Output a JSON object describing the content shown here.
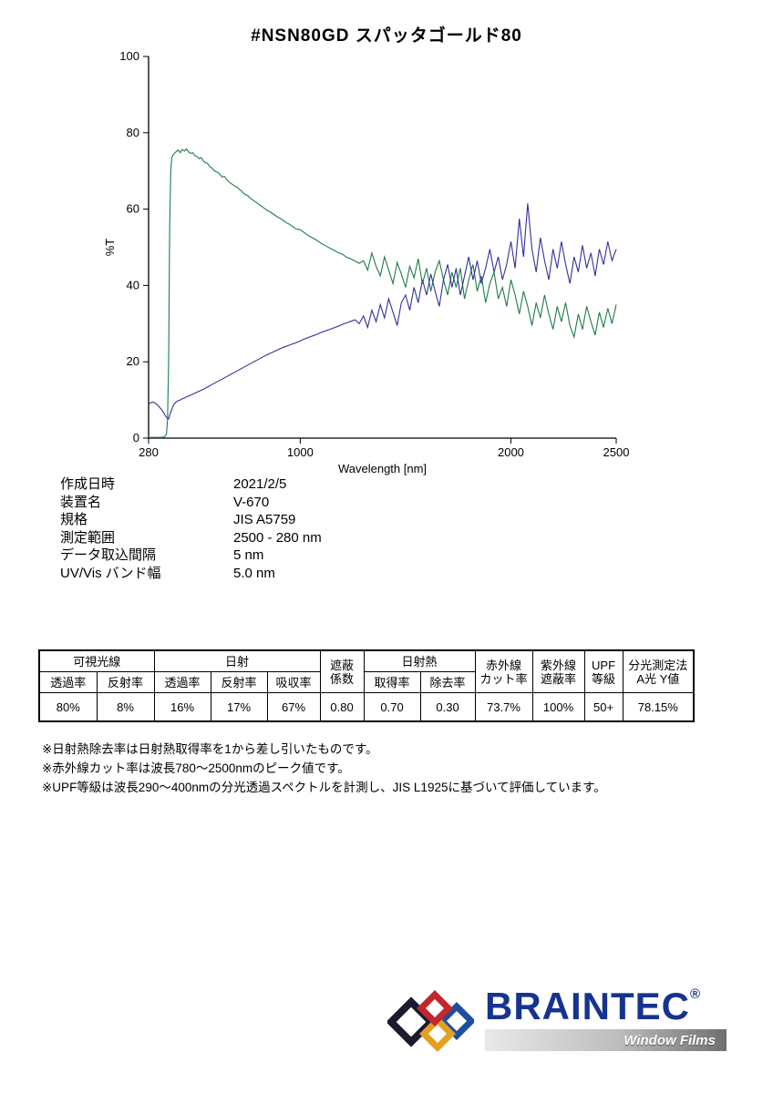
{
  "title": "#NSN80GD  スパッタゴールド80",
  "chart_data": {
    "type": "line",
    "title": "",
    "xlabel": "Wavelength [nm]",
    "ylabel": "%T",
    "xlim": [
      280,
      2500
    ],
    "ylim": [
      0,
      100
    ],
    "x_ticks": [
      280,
      1000,
      2000,
      2500
    ],
    "y_ticks": [
      0,
      20,
      40,
      60,
      80,
      100
    ],
    "grid": false,
    "legend": "none",
    "series": [
      {
        "name": "transmittance",
        "color": "#1e7d46",
        "points": [
          [
            280,
            0.2
          ],
          [
            300,
            0.2
          ],
          [
            320,
            0.2
          ],
          [
            340,
            0.2
          ],
          [
            355,
            0.3
          ],
          [
            365,
            1
          ],
          [
            370,
            5
          ],
          [
            375,
            20
          ],
          [
            380,
            55
          ],
          [
            385,
            70
          ],
          [
            390,
            73.5
          ],
          [
            395,
            74
          ],
          [
            400,
            74.5
          ],
          [
            410,
            75
          ],
          [
            420,
            75.5
          ],
          [
            430,
            74.8
          ],
          [
            440,
            75.6
          ],
          [
            450,
            75.2
          ],
          [
            460,
            75.8
          ],
          [
            470,
            75.0
          ],
          [
            480,
            74.6
          ],
          [
            490,
            74.8
          ],
          [
            500,
            74.0
          ],
          [
            510,
            73.8
          ],
          [
            520,
            73.2
          ],
          [
            530,
            73.5
          ],
          [
            540,
            72.6
          ],
          [
            550,
            72.2
          ],
          [
            560,
            72.0
          ],
          [
            570,
            71.2
          ],
          [
            580,
            70.8
          ],
          [
            590,
            70.2
          ],
          [
            600,
            69.8
          ],
          [
            610,
            69.6
          ],
          [
            620,
            69.0
          ],
          [
            630,
            68.4
          ],
          [
            640,
            68.6
          ],
          [
            650,
            67.8
          ],
          [
            660,
            67.2
          ],
          [
            670,
            66.8
          ],
          [
            680,
            66.4
          ],
          [
            690,
            66.0
          ],
          [
            700,
            65.8
          ],
          [
            710,
            65.2
          ],
          [
            720,
            64.8
          ],
          [
            730,
            64.2
          ],
          [
            740,
            63.8
          ],
          [
            750,
            63.6
          ],
          [
            760,
            63.0
          ],
          [
            770,
            62.6
          ],
          [
            780,
            62.2
          ],
          [
            790,
            61.8
          ],
          [
            800,
            61.4
          ],
          [
            815,
            60.8
          ],
          [
            830,
            60.2
          ],
          [
            845,
            59.6
          ],
          [
            860,
            59.2
          ],
          [
            875,
            58.6
          ],
          [
            890,
            58.0
          ],
          [
            905,
            57.6
          ],
          [
            920,
            57.0
          ],
          [
            935,
            56.4
          ],
          [
            950,
            56.0
          ],
          [
            965,
            55.4
          ],
          [
            980,
            54.8
          ],
          [
            1000,
            54.6
          ],
          [
            1020,
            53.8
          ],
          [
            1040,
            53.0
          ],
          [
            1060,
            52.4
          ],
          [
            1080,
            51.8
          ],
          [
            1100,
            51.0
          ],
          [
            1120,
            50.4
          ],
          [
            1140,
            49.8
          ],
          [
            1160,
            49.2
          ],
          [
            1180,
            48.6
          ],
          [
            1200,
            48.2
          ],
          [
            1220,
            47.4
          ],
          [
            1240,
            47.0
          ],
          [
            1260,
            46.4
          ],
          [
            1280,
            45.8
          ],
          [
            1300,
            46.5
          ],
          [
            1320,
            44.0
          ],
          [
            1340,
            48.5
          ],
          [
            1360,
            45.0
          ],
          [
            1380,
            42.5
          ],
          [
            1400,
            47.5
          ],
          [
            1420,
            44.0
          ],
          [
            1440,
            40.5
          ],
          [
            1460,
            46.0
          ],
          [
            1480,
            43.0
          ],
          [
            1500,
            39.5
          ],
          [
            1520,
            45.0
          ],
          [
            1540,
            42.0
          ],
          [
            1560,
            47.0
          ],
          [
            1580,
            40.5
          ],
          [
            1600,
            44.5
          ],
          [
            1620,
            38.5
          ],
          [
            1640,
            43.5
          ],
          [
            1660,
            46.5
          ],
          [
            1680,
            41.5
          ],
          [
            1700,
            37.5
          ],
          [
            1720,
            43.5
          ],
          [
            1740,
            39.5
          ],
          [
            1760,
            44.5
          ],
          [
            1780,
            36.5
          ],
          [
            1800,
            41.5
          ],
          [
            1820,
            45.5
          ],
          [
            1840,
            38.5
          ],
          [
            1860,
            42.5
          ],
          [
            1880,
            35.5
          ],
          [
            1900,
            40.5
          ],
          [
            1920,
            43.5
          ],
          [
            1940,
            36.5
          ],
          [
            1960,
            39.5
          ],
          [
            1980,
            34.5
          ],
          [
            2000,
            41.5
          ],
          [
            2020,
            37.5
          ],
          [
            2040,
            32.5
          ],
          [
            2060,
            38.5
          ],
          [
            2080,
            34.5
          ],
          [
            2100,
            29.5
          ],
          [
            2120,
            35.5
          ],
          [
            2140,
            31.5
          ],
          [
            2160,
            37.5
          ],
          [
            2180,
            32.5
          ],
          [
            2200,
            28.5
          ],
          [
            2220,
            34.5
          ],
          [
            2240,
            30.5
          ],
          [
            2260,
            35.5
          ],
          [
            2280,
            29.5
          ],
          [
            2300,
            26.5
          ],
          [
            2320,
            32.5
          ],
          [
            2340,
            28.5
          ],
          [
            2360,
            34.5
          ],
          [
            2380,
            30.5
          ],
          [
            2400,
            27.0
          ],
          [
            2420,
            33.0
          ],
          [
            2440,
            29.0
          ],
          [
            2460,
            34.0
          ],
          [
            2480,
            30.0
          ],
          [
            2500,
            35.0
          ]
        ]
      },
      {
        "name": "reflectance",
        "color": "#31319a",
        "points": [
          [
            280,
            9.0
          ],
          [
            300,
            9.5
          ],
          [
            310,
            9.2
          ],
          [
            320,
            8.8
          ],
          [
            330,
            8.2
          ],
          [
            340,
            7.6
          ],
          [
            350,
            6.8
          ],
          [
            360,
            5.8
          ],
          [
            370,
            5.2
          ],
          [
            375,
            5.0
          ],
          [
            380,
            6.0
          ],
          [
            390,
            7.5
          ],
          [
            400,
            8.8
          ],
          [
            410,
            9.4
          ],
          [
            420,
            9.8
          ],
          [
            430,
            10.0
          ],
          [
            440,
            10.3
          ],
          [
            450,
            10.5
          ],
          [
            460,
            10.8
          ],
          [
            470,
            11.0
          ],
          [
            480,
            11.3
          ],
          [
            490,
            11.5
          ],
          [
            500,
            11.8
          ],
          [
            520,
            12.3
          ],
          [
            540,
            12.8
          ],
          [
            560,
            13.4
          ],
          [
            580,
            14.0
          ],
          [
            600,
            14.6
          ],
          [
            620,
            15.2
          ],
          [
            640,
            15.8
          ],
          [
            660,
            16.4
          ],
          [
            680,
            17.0
          ],
          [
            700,
            17.6
          ],
          [
            720,
            18.2
          ],
          [
            740,
            18.8
          ],
          [
            760,
            19.4
          ],
          [
            780,
            20.0
          ],
          [
            800,
            20.6
          ],
          [
            820,
            21.2
          ],
          [
            840,
            21.8
          ],
          [
            860,
            22.3
          ],
          [
            880,
            22.8
          ],
          [
            900,
            23.3
          ],
          [
            920,
            23.8
          ],
          [
            940,
            24.2
          ],
          [
            960,
            24.6
          ],
          [
            980,
            25.0
          ],
          [
            1000,
            25.5
          ],
          [
            1020,
            26.0
          ],
          [
            1040,
            26.4
          ],
          [
            1060,
            26.8
          ],
          [
            1080,
            27.2
          ],
          [
            1100,
            27.7
          ],
          [
            1120,
            28.1
          ],
          [
            1140,
            28.5
          ],
          [
            1160,
            28.9
          ],
          [
            1180,
            29.3
          ],
          [
            1200,
            29.8
          ],
          [
            1220,
            30.2
          ],
          [
            1240,
            30.6
          ],
          [
            1260,
            31.0
          ],
          [
            1280,
            30.0
          ],
          [
            1300,
            32.0
          ],
          [
            1320,
            29.0
          ],
          [
            1340,
            33.5
          ],
          [
            1360,
            30.5
          ],
          [
            1380,
            35.0
          ],
          [
            1400,
            31.5
          ],
          [
            1420,
            36.5
          ],
          [
            1440,
            33.0
          ],
          [
            1460,
            29.5
          ],
          [
            1480,
            35.5
          ],
          [
            1500,
            37.5
          ],
          [
            1520,
            33.5
          ],
          [
            1540,
            39.5
          ],
          [
            1560,
            35.5
          ],
          [
            1580,
            41.5
          ],
          [
            1600,
            37.5
          ],
          [
            1620,
            43.0
          ],
          [
            1640,
            38.5
          ],
          [
            1660,
            34.5
          ],
          [
            1680,
            41.5
          ],
          [
            1700,
            45.5
          ],
          [
            1720,
            39.5
          ],
          [
            1740,
            44.5
          ],
          [
            1760,
            37.5
          ],
          [
            1780,
            42.5
          ],
          [
            1800,
            47.5
          ],
          [
            1820,
            41.5
          ],
          [
            1840,
            46.5
          ],
          [
            1860,
            40.5
          ],
          [
            1880,
            44.5
          ],
          [
            1900,
            49.5
          ],
          [
            1920,
            43.5
          ],
          [
            1940,
            47.5
          ],
          [
            1960,
            41.5
          ],
          [
            1980,
            45.5
          ],
          [
            2000,
            51.5
          ],
          [
            2020,
            44.5
          ],
          [
            2040,
            57.5
          ],
          [
            2060,
            47.5
          ],
          [
            2080,
            61.5
          ],
          [
            2100,
            49.5
          ],
          [
            2120,
            43.5
          ],
          [
            2140,
            52.5
          ],
          [
            2160,
            46.5
          ],
          [
            2180,
            41.5
          ],
          [
            2200,
            49.5
          ],
          [
            2220,
            44.5
          ],
          [
            2240,
            51.5
          ],
          [
            2260,
            45.5
          ],
          [
            2280,
            40.5
          ],
          [
            2300,
            47.5
          ],
          [
            2320,
            43.5
          ],
          [
            2340,
            50.5
          ],
          [
            2360,
            44.5
          ],
          [
            2380,
            48.5
          ],
          [
            2400,
            42.5
          ],
          [
            2420,
            49.5
          ],
          [
            2440,
            45.5
          ],
          [
            2460,
            51.5
          ],
          [
            2480,
            46.5
          ],
          [
            2500,
            49.5
          ]
        ]
      }
    ]
  },
  "metadata": {
    "rows": [
      {
        "label": "作成日時",
        "value": "2021/2/5"
      },
      {
        "label": "装置名",
        "value": "V-670"
      },
      {
        "label": "規格",
        "value": "JIS A5759"
      },
      {
        "label": "測定範囲",
        "value": "2500 - 280 nm"
      },
      {
        "label": "データ取込間隔",
        "value": "5 nm"
      },
      {
        "label": "UV/Vis バンド幅",
        "value": "5.0 nm"
      }
    ]
  },
  "results_table": {
    "group_row": [
      "可視光線",
      "日射",
      "遮蔽\n係数",
      "日射熱",
      "赤外線\nカット率",
      "紫外線\n遮蔽率",
      "UPF\n等級",
      "分光測定法\nA光 Y値"
    ],
    "sub_row": [
      "透過率",
      "反射率",
      "透過率",
      "反射率",
      "吸収率",
      "取得率",
      "除去率"
    ],
    "values": [
      "80%",
      "8%",
      "16%",
      "17%",
      "67%",
      "0.80",
      "0.70",
      "0.30",
      "73.7%",
      "100%",
      "50+",
      "78.15%"
    ]
  },
  "notes": [
    "※日射熱除去率は日射熱取得率を1から差し引いたものです。",
    "※赤外線カット率は波長780～2500nmのピーク値です。",
    "※UPF等級は波長290～400nmの分光透過スペクトルを計測し、JIS L1925に基づいて評価しています。"
  ],
  "logo": {
    "brand": "BRAINTEC",
    "registered": "®",
    "tagline": "Window Films",
    "brand_color": "#16338f",
    "diamond_colors": [
      "#1b1b2f",
      "#1d4f9e",
      "#e3a021",
      "#c1272d"
    ]
  }
}
